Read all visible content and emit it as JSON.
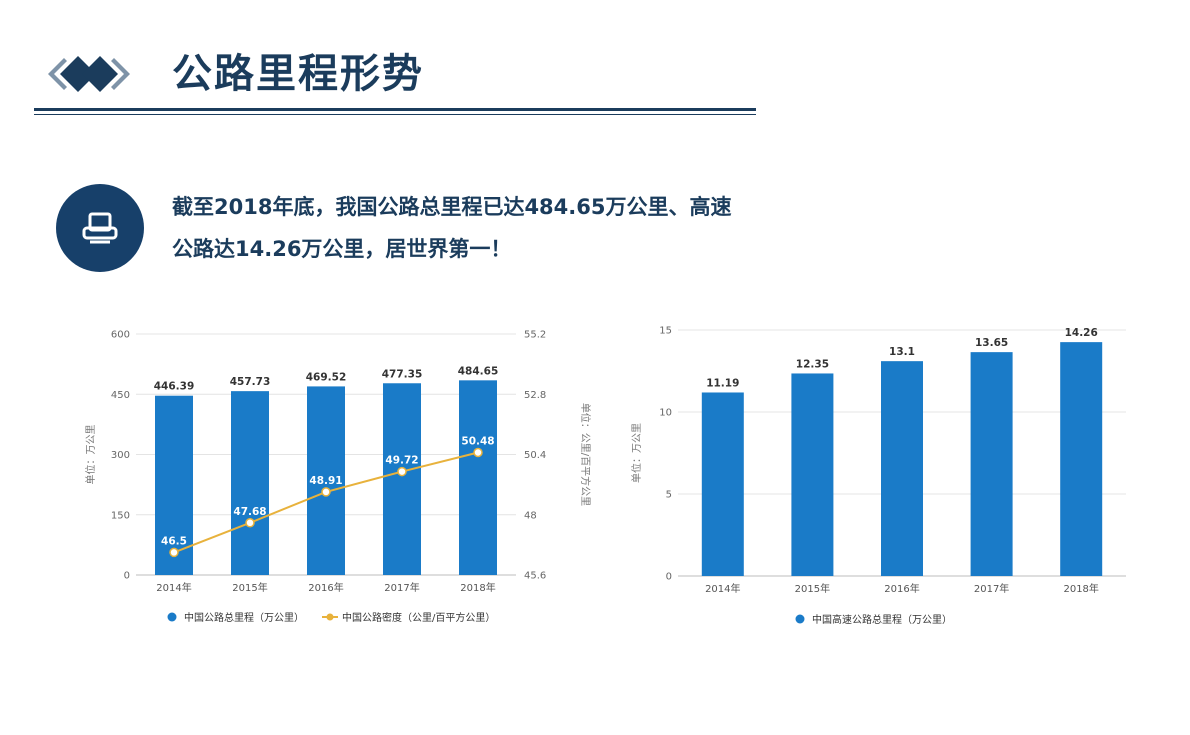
{
  "header": {
    "title": "公路里程形势"
  },
  "headline": {
    "line1": "截至2018年底，我国公路总里程已达484.65万公里、高速",
    "line2": "公路达14.26万公里，居世界第一！"
  },
  "colors": {
    "navy": "#1b3c5c",
    "bar": "#1a7bc8",
    "line": "#e8b23c",
    "grid": "#e4e4e4"
  },
  "icons": {
    "logo": "diamond-chevrons-logo",
    "badge": "printer-icon"
  },
  "chart_data": [
    {
      "type": "bar",
      "categories": [
        "2014年",
        "2015年",
        "2016年",
        "2017年",
        "2018年"
      ],
      "series": [
        {
          "name": "中国公路总里程（万公里）",
          "values": [
            446.39,
            457.73,
            469.52,
            477.35,
            484.65
          ],
          "labels": [
            "446.39",
            "457.73",
            "469.52",
            "477.35",
            "484.65"
          ],
          "axis": "left",
          "render": "bar"
        },
        {
          "name": "中国公路密度（公里/百平方公里）",
          "values": [
            46.5,
            47.68,
            48.91,
            49.72,
            50.48
          ],
          "labels": [
            "46.5",
            "47.68",
            "48.91",
            "49.72",
            "50.48"
          ],
          "axis": "right",
          "render": "line"
        }
      ],
      "ylabel": "单位：万公里",
      "y2label": "单位：公里/百平方公里",
      "ylim": [
        0,
        600
      ],
      "yticks": [
        "0",
        "150",
        "300",
        "450",
        "600"
      ],
      "y2lim": [
        45.6,
        55.2
      ],
      "y2ticks": [
        "45.6",
        "48",
        "50.4",
        "52.8",
        "55.2"
      ],
      "grid": true,
      "legend": "bottom"
    },
    {
      "type": "bar",
      "categories": [
        "2014年",
        "2015年",
        "2016年",
        "2017年",
        "2018年"
      ],
      "series": [
        {
          "name": "中国高速公路总里程（万公里）",
          "values": [
            11.19,
            12.35,
            13.1,
            13.65,
            14.26
          ],
          "labels": [
            "11.19",
            "12.35",
            "13.1",
            "13.65",
            "14.26"
          ],
          "axis": "left",
          "render": "bar"
        }
      ],
      "ylabel": "单位：万公里",
      "ylim": [
        0,
        15
      ],
      "yticks": [
        "0",
        "5",
        "10",
        "15"
      ],
      "grid": true,
      "legend": "bottom"
    }
  ]
}
